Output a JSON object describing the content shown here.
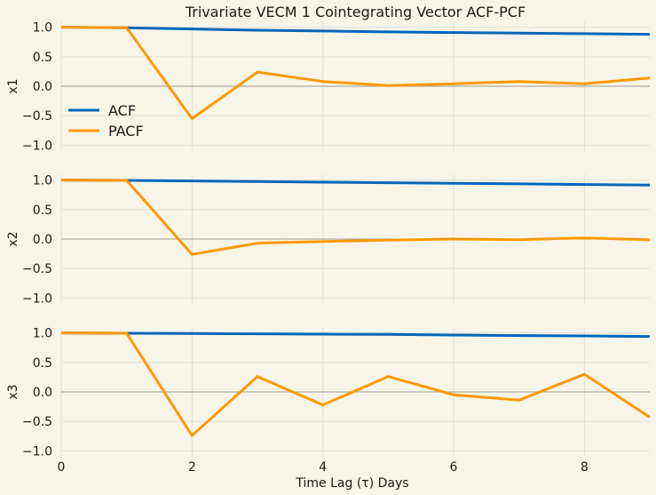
{
  "chart_data": {
    "type": "line",
    "title": "Trivariate VECM 1 Cointegrating Vector ACF-PCF",
    "xlabel": "Time Lag (τ) Days",
    "x": [
      0,
      1,
      2,
      3,
      4,
      5,
      6,
      7,
      8,
      9
    ],
    "xlim": [
      0,
      9
    ],
    "xticks": [
      "0",
      "2",
      "4",
      "6",
      "8"
    ],
    "ylim": [
      -1.1,
      1.1
    ],
    "yticks": [
      "1.0",
      "0.5",
      "0.0",
      "−0.5",
      "−1.0"
    ],
    "grid": true,
    "legend_position": "left",
    "colors": {
      "ACF": "#0066bb",
      "PACF": "#ff9900",
      "background": "#f7f5e9"
    },
    "panels": [
      {
        "ylabel": "x1",
        "show_legend": true,
        "series": [
          {
            "name": "ACF",
            "values": [
              1.0,
              0.99,
              0.97,
              0.95,
              0.935,
              0.92,
              0.91,
              0.9,
              0.89,
              0.88
            ]
          },
          {
            "name": "PACF",
            "values": [
              1.0,
              0.99,
              -0.55,
              0.24,
              0.08,
              0.01,
              0.04,
              0.08,
              0.04,
              0.14
            ]
          }
        ]
      },
      {
        "ylabel": "x2",
        "show_legend": false,
        "series": [
          {
            "name": "ACF",
            "values": [
              1.0,
              0.995,
              0.985,
              0.975,
              0.965,
              0.955,
              0.945,
              0.935,
              0.925,
              0.915
            ]
          },
          {
            "name": "PACF",
            "values": [
              1.0,
              0.995,
              -0.26,
              -0.07,
              -0.04,
              -0.02,
              0.0,
              -0.01,
              0.02,
              -0.01
            ]
          }
        ]
      },
      {
        "ylabel": "x3",
        "show_legend": false,
        "series": [
          {
            "name": "ACF",
            "values": [
              1.0,
              0.995,
              0.99,
              0.985,
              0.98,
              0.975,
              0.965,
              0.955,
              0.95,
              0.94
            ]
          },
          {
            "name": "PACF",
            "values": [
              1.0,
              0.995,
              -0.74,
              0.26,
              -0.22,
              0.26,
              -0.05,
              -0.14,
              0.3,
              -0.43
            ]
          }
        ]
      }
    ]
  }
}
